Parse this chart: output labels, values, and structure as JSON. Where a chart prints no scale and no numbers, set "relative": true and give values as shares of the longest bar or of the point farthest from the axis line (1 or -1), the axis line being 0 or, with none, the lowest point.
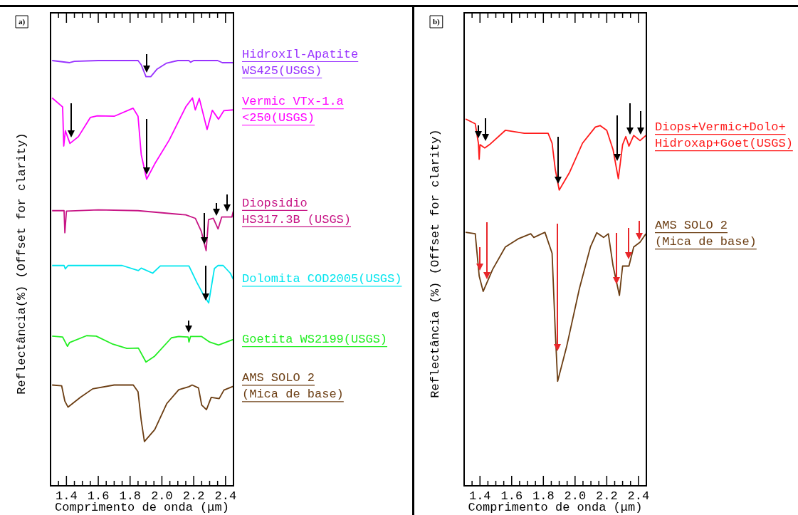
{
  "chart_data": [
    {
      "type": "line",
      "title": "a)",
      "xlabel": "Comprimento de onda (μm)",
      "ylabel": "Reflectância(%) (Offset for clarity)",
      "relative": true,
      "xlim": [
        1.3,
        2.45
      ],
      "xticks": [
        {
          "value": 1.35,
          "label": null
        },
        1.4,
        {
          "value": 1.45,
          "label": null
        },
        {
          "value": 1.5,
          "label": null
        },
        {
          "value": 1.55,
          "label": null
        },
        1.6,
        {
          "value": 1.65,
          "label": null
        },
        {
          "value": 1.7,
          "label": null
        },
        {
          "value": 1.75,
          "label": null
        },
        1.8,
        {
          "value": 1.85,
          "label": null
        },
        {
          "value": 1.9,
          "label": null
        },
        {
          "value": 1.95,
          "label": null
        },
        {
          "value": 2.0,
          "label": "2.0"
        },
        {
          "value": 2.05,
          "label": null
        },
        {
          "value": 2.1,
          "label": null
        },
        {
          "value": 2.15,
          "label": null
        },
        2.2,
        {
          "value": 2.25,
          "label": null
        },
        {
          "value": 2.3,
          "label": null
        },
        {
          "value": 2.35,
          "label": null
        },
        2.4
      ],
      "series": [
        {
          "name": "HidroxIl-Apatite\nWS425(USGS)",
          "color": "#9933ff",
          "x": [
            1.31,
            1.42,
            1.45,
            1.6,
            1.75,
            1.85,
            1.87,
            1.9,
            1.93,
            1.97,
            2.03,
            2.1,
            2.17,
            2.18,
            2.2,
            2.35,
            2.38,
            2.45
          ],
          "values": [
            1.0,
            0.995,
            0.998,
            1.0,
            1.0,
            1.0,
            0.99,
            0.962,
            0.962,
            0.98,
            0.994,
            1.0,
            1.0,
            0.996,
            1.0,
            1.0,
            0.995,
            0.995
          ]
        },
        {
          "name": "Vermic VTx-1.a\n<250(USGS)",
          "color": "#ff00ff",
          "x": [
            1.31,
            1.376,
            1.383,
            1.393,
            1.422,
            1.475,
            1.55,
            1.594,
            1.7,
            1.819,
            1.85,
            1.87,
            1.904,
            1.955,
            2.046,
            2.15,
            2.192,
            2.21,
            2.235,
            2.284,
            2.317,
            2.356,
            2.389,
            2.448
          ],
          "values": [
            0.912,
            0.891,
            0.799,
            0.835,
            0.805,
            0.821,
            0.866,
            0.87,
            0.869,
            0.888,
            0.869,
            0.779,
            0.721,
            0.757,
            0.813,
            0.891,
            0.912,
            0.884,
            0.911,
            0.838,
            0.883,
            0.862,
            0.882,
            0.884
          ]
        },
        {
          "name": "Diopsidio\nHS317.3B (USGS)",
          "color": "#c71585",
          "x": [
            1.31,
            1.385,
            1.39,
            1.4,
            1.6,
            1.85,
            2.15,
            2.21,
            2.248,
            2.278,
            2.293,
            2.323,
            2.353,
            2.376,
            2.44,
            2.448
          ],
          "values": [
            0.647,
            0.647,
            0.595,
            0.646,
            0.649,
            0.647,
            0.637,
            0.629,
            0.598,
            0.553,
            0.626,
            0.629,
            0.604,
            0.632,
            0.632,
            0.645
          ]
        },
        {
          "name": "Dolomita COD2005(USGS)",
          "color": "#00e5ee",
          "x": [
            1.31,
            1.385,
            1.393,
            1.41,
            1.75,
            1.852,
            1.87,
            1.942,
            1.99,
            2.17,
            2.22,
            2.26,
            2.294,
            2.33,
            2.353,
            2.385,
            2.43,
            2.448
          ],
          "values": [
            0.518,
            0.518,
            0.51,
            0.518,
            0.518,
            0.506,
            0.512,
            0.5,
            0.517,
            0.517,
            0.478,
            0.45,
            0.43,
            0.511,
            0.518,
            0.518,
            0.5,
            0.486
          ]
        },
        {
          "name": "Goetita WS2199(USGS)",
          "color": "#22ee22",
          "x": [
            1.31,
            1.376,
            1.406,
            1.42,
            1.527,
            1.587,
            1.692,
            1.78,
            1.852,
            1.9,
            1.955,
            2.06,
            2.106,
            2.165,
            2.17,
            2.18,
            2.25,
            2.3,
            2.356,
            2.448
          ],
          "values": [
            0.352,
            0.35,
            0.328,
            0.337,
            0.353,
            0.352,
            0.333,
            0.323,
            0.324,
            0.291,
            0.305,
            0.348,
            0.351,
            0.35,
            0.338,
            0.351,
            0.351,
            0.338,
            0.331,
            0.344
          ]
        },
        {
          "name": "AMS SOLO 2\n(Mica de base)",
          "color": "#6b3d12",
          "x": [
            1.31,
            1.37,
            1.39,
            1.41,
            1.488,
            1.565,
            1.7,
            1.82,
            1.85,
            1.87,
            1.89,
            1.955,
            2.03,
            2.106,
            2.17,
            2.19,
            2.23,
            2.25,
            2.28,
            2.31,
            2.36,
            2.39,
            2.448
          ],
          "values": [
            0.237,
            0.235,
            0.199,
            0.185,
            0.208,
            0.228,
            0.237,
            0.237,
            0.221,
            0.154,
            0.104,
            0.132,
            0.193,
            0.226,
            0.233,
            0.237,
            0.23,
            0.19,
            0.179,
            0.208,
            0.205,
            0.225,
            0.234
          ]
        }
      ]
    },
    {
      "type": "line",
      "title": "b)",
      "xlabel": "Comprimento de onda (μm)",
      "ylabel": "Reflectância (%) (Offset for clarity)",
      "relative": true,
      "xlim": [
        1.3,
        2.45
      ],
      "xticks": [
        {
          "value": 1.35,
          "label": null
        },
        1.4,
        {
          "value": 1.45,
          "label": null
        },
        {
          "value": 1.5,
          "label": null
        },
        {
          "value": 1.55,
          "label": null
        },
        1.6,
        {
          "value": 1.65,
          "label": null
        },
        {
          "value": 1.7,
          "label": null
        },
        {
          "value": 1.75,
          "label": null
        },
        1.8,
        {
          "value": 1.85,
          "label": null
        },
        {
          "value": 1.9,
          "label": null
        },
        {
          "value": 1.95,
          "label": null
        },
        {
          "value": 2.0,
          "label": "2.0"
        },
        {
          "value": 2.05,
          "label": null
        },
        {
          "value": 2.1,
          "label": null
        },
        {
          "value": 2.15,
          "label": null
        },
        2.2,
        {
          "value": 2.25,
          "label": null
        },
        {
          "value": 2.3,
          "label": null
        },
        {
          "value": 2.35,
          "label": null
        },
        2.4
      ],
      "series": [
        {
          "name": "Diops+Vermic+Dolo+\nHidroxap+Goet(USGS)",
          "color": "#ff1a1a",
          "x": [
            1.309,
            1.37,
            1.39,
            1.395,
            1.4,
            1.43,
            1.46,
            1.56,
            1.68,
            1.83,
            1.855,
            1.875,
            1.9,
            1.966,
            2.047,
            2.128,
            2.158,
            2.2,
            2.24,
            2.273,
            2.3,
            2.32,
            2.34,
            2.37,
            2.41,
            2.447
          ],
          "values": [
            1.0,
            0.987,
            0.934,
            0.89,
            0.93,
            0.921,
            0.93,
            0.969,
            0.961,
            0.961,
            0.934,
            0.863,
            0.806,
            0.855,
            0.934,
            0.978,
            0.982,
            0.969,
            0.916,
            0.837,
            0.93,
            0.952,
            0.926,
            0.955,
            0.941,
            0.955
          ]
        },
        {
          "name": "AMS SOLO 2\n(Mica de base)",
          "color": "#6b3d12",
          "x": [
            1.309,
            1.37,
            1.395,
            1.42,
            1.48,
            1.56,
            1.64,
            1.72,
            1.74,
            1.81,
            1.855,
            1.875,
            1.89,
            1.946,
            2.027,
            2.097,
            2.137,
            2.18,
            2.21,
            2.24,
            2.28,
            2.3,
            2.34,
            2.37,
            2.41,
            2.447
          ],
          "values": [
            0.691,
            0.687,
            0.572,
            0.53,
            0.59,
            0.651,
            0.673,
            0.687,
            0.677,
            0.691,
            0.634,
            0.422,
            0.285,
            0.378,
            0.537,
            0.651,
            0.69,
            0.677,
            0.687,
            0.599,
            0.519,
            0.599,
            0.599,
            0.651,
            0.664,
            0.687
          ]
        }
      ]
    }
  ]
}
